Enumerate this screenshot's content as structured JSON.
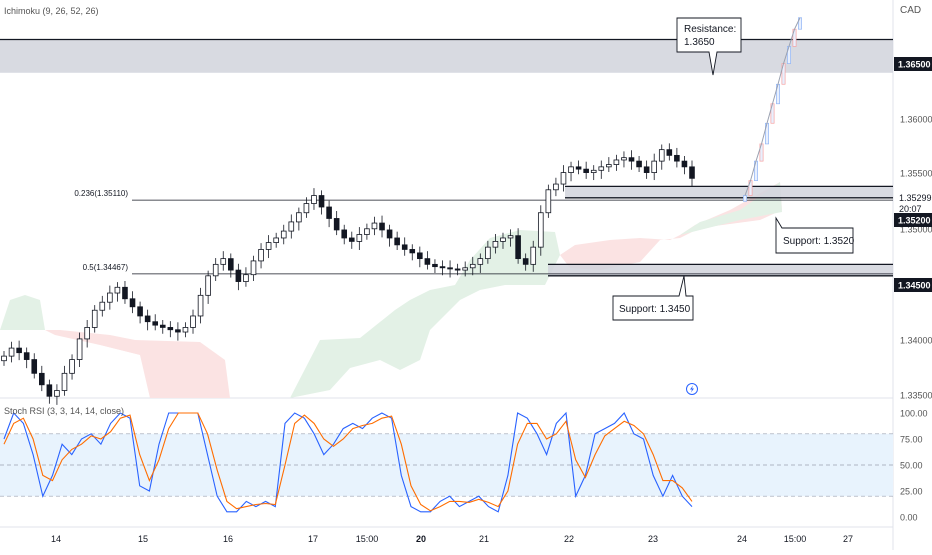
{
  "header": {
    "indicator": "Ichimoku (9, 26, 52, 26)",
    "currency": "CAD"
  },
  "lower_pane": {
    "indicator": "Stoch RSI (3, 3, 14, 14, close)"
  },
  "colors": {
    "up": "#ffffff",
    "down": "#131722",
    "stoch_k": "#2962ff",
    "stoch_d": "#ff6d00",
    "cloud_bull": "#e3f1e6",
    "cloud_bear": "#fbe3e3",
    "zone": "#d1d4dc",
    "rsi_band": "#e8f3fd"
  },
  "chart_data": [
    {
      "type": "candlestick",
      "ylim": [
        1.3335,
        1.3675
      ],
      "price_ticks": [
        "1.36500",
        "1.36000",
        "1.35500",
        "1.35000",
        "1.34500",
        "1.34000",
        "1.33500"
      ],
      "highlighted_prices": [
        "1.36500",
        "1.35200",
        "1.34500"
      ],
      "current_price": "1.35299",
      "countdown": "20:07",
      "x_labels": [
        "14",
        "15",
        "16",
        "17",
        "15:00",
        "20",
        "21",
        "22",
        "23",
        "24",
        "15:00",
        "27"
      ],
      "fib_levels": [
        {
          "label": "0.236(1.35110)",
          "price": 1.3511
        },
        {
          "label": "0.5(1.34467)",
          "price": 1.34467
        }
      ],
      "zones": [
        {
          "name": "resistance",
          "from": 1.3622,
          "to": 1.3651
        },
        {
          "name": "support-1",
          "from": 1.3513,
          "to": 1.3523
        },
        {
          "name": "support-2",
          "from": 1.3445,
          "to": 1.3455
        }
      ],
      "annotations": [
        {
          "id": "resistance",
          "line1": "Resistance:",
          "line2": "1.3650"
        },
        {
          "id": "support-1",
          "text": "Support: 1.3520"
        },
        {
          "id": "support-2",
          "text": "Support: 1.3450"
        }
      ],
      "series_close": [
        1.3375,
        1.3382,
        1.3378,
        1.3372,
        1.336,
        1.335,
        1.334,
        1.3345,
        1.336,
        1.3372,
        1.339,
        1.34,
        1.3415,
        1.3422,
        1.343,
        1.3435,
        1.3425,
        1.3418,
        1.341,
        1.3405,
        1.3402,
        1.34,
        1.3398,
        1.3396,
        1.34,
        1.341,
        1.3428,
        1.3445,
        1.3455,
        1.346,
        1.345,
        1.344,
        1.3446,
        1.3458,
        1.3468,
        1.3474,
        1.3478,
        1.3484,
        1.3492,
        1.35,
        1.3508,
        1.3515,
        1.3505,
        1.3495,
        1.3485,
        1.3478,
        1.3475,
        1.3481,
        1.3486,
        1.3491,
        1.3485,
        1.3478,
        1.3472,
        1.3468,
        1.3465,
        1.346,
        1.3455,
        1.3453,
        1.3452,
        1.3451,
        1.345,
        1.3452,
        1.3455,
        1.346,
        1.347,
        1.3475,
        1.3478,
        1.348,
        1.346,
        1.3455,
        1.347,
        1.35,
        1.352,
        1.3525,
        1.3535,
        1.354,
        1.3538,
        1.3535,
        1.3537,
        1.354,
        1.3542,
        1.3546,
        1.3548,
        1.3545,
        1.354,
        1.3535,
        1.3545,
        1.3555,
        1.355,
        1.3545,
        1.354,
        1.353
      ],
      "projection": [
        1.3515,
        1.3528,
        1.3545,
        1.356,
        1.3578,
        1.3595,
        1.3612,
        1.363,
        1.3645,
        1.366,
        1.367
      ]
    },
    {
      "type": "line",
      "ylim": [
        0,
        100
      ],
      "y_ticks": [
        "100.00",
        "75.00",
        "50.00",
        "25.00",
        "0.00"
      ],
      "band": [
        20,
        80
      ],
      "series": [
        {
          "name": "K",
          "values": [
            75,
            100,
            90,
            60,
            20,
            40,
            70,
            60,
            75,
            80,
            70,
            90,
            100,
            95,
            30,
            25,
            70,
            100,
            100,
            100,
            100,
            60,
            20,
            5,
            5,
            15,
            10,
            15,
            10,
            90,
            100,
            95,
            80,
            60,
            70,
            85,
            90,
            85,
            95,
            100,
            95,
            40,
            10,
            5,
            5,
            15,
            20,
            10,
            15,
            20,
            10,
            5,
            40,
            100,
            95,
            80,
            60,
            90,
            100,
            20,
            40,
            80,
            85,
            90,
            100,
            80,
            75,
            40,
            20,
            40,
            20,
            10
          ]
        },
        {
          "name": "D",
          "values": [
            70,
            90,
            95,
            75,
            40,
            35,
            55,
            65,
            70,
            78,
            75,
            82,
            95,
            98,
            60,
            35,
            55,
            85,
            100,
            100,
            100,
            80,
            45,
            15,
            8,
            10,
            12,
            13,
            12,
            50,
            90,
            98,
            90,
            75,
            68,
            75,
            85,
            88,
            90,
            95,
            97,
            70,
            30,
            12,
            6,
            10,
            15,
            15,
            14,
            17,
            14,
            10,
            25,
            70,
            90,
            90,
            75,
            80,
            92,
            55,
            38,
            60,
            78,
            85,
            92,
            88,
            80,
            60,
            35,
            35,
            28,
            15
          ]
        }
      ]
    }
  ]
}
